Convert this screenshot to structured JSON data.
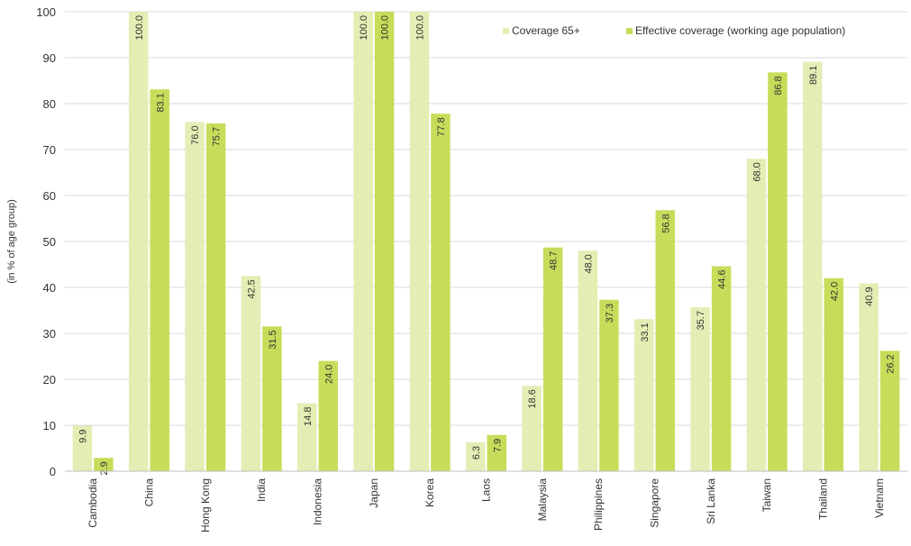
{
  "chart_data": {
    "type": "bar",
    "categories": [
      "Cambodia",
      "China",
      "Hong Kong",
      "India",
      "Indonesia",
      "Japan",
      "Korea",
      "Laos",
      "Malaysia",
      "Philippines",
      "Singapore",
      "Sri Lanka",
      "Taiwan",
      "Thailand",
      "Vietnam"
    ],
    "series": [
      {
        "name": "Coverage 65+",
        "color": "#e2eeb4",
        "values": [
          9.9,
          100.0,
          76.0,
          42.5,
          14.8,
          100.0,
          100.0,
          6.3,
          18.6,
          48.0,
          33.1,
          35.7,
          68.0,
          89.1,
          40.9
        ],
        "labels": [
          "9.9",
          "100.0",
          "76.0",
          "42.5",
          "14.8",
          "100.0",
          "100.0",
          "6.3",
          "18.6",
          "48.0",
          "33.1",
          "35.7",
          "68.0",
          "89.1",
          "40.9"
        ]
      },
      {
        "name": "Effective coverage (working age population)",
        "color": "#c8dc5a",
        "values": [
          2.9,
          83.1,
          75.7,
          31.5,
          24.0,
          100.0,
          77.8,
          7.9,
          48.7,
          37.3,
          56.8,
          44.6,
          86.8,
          42.0,
          26.2
        ],
        "labels": [
          "2.9",
          "83.1",
          "75.7",
          "31.5",
          "24.0",
          "100.0",
          "77.8",
          "7.9",
          "48.7",
          "37.3",
          "56.8",
          "44.6",
          "86.8",
          "42.0",
          "26.2"
        ]
      }
    ],
    "ylabel": "(in % of age group)",
    "xlabel": "",
    "ylim": [
      0,
      100
    ],
    "yticks": [
      "0",
      "10",
      "20",
      "30",
      "40",
      "50",
      "60",
      "70",
      "80",
      "90",
      "100"
    ],
    "grid": true,
    "legend": "top-right"
  }
}
